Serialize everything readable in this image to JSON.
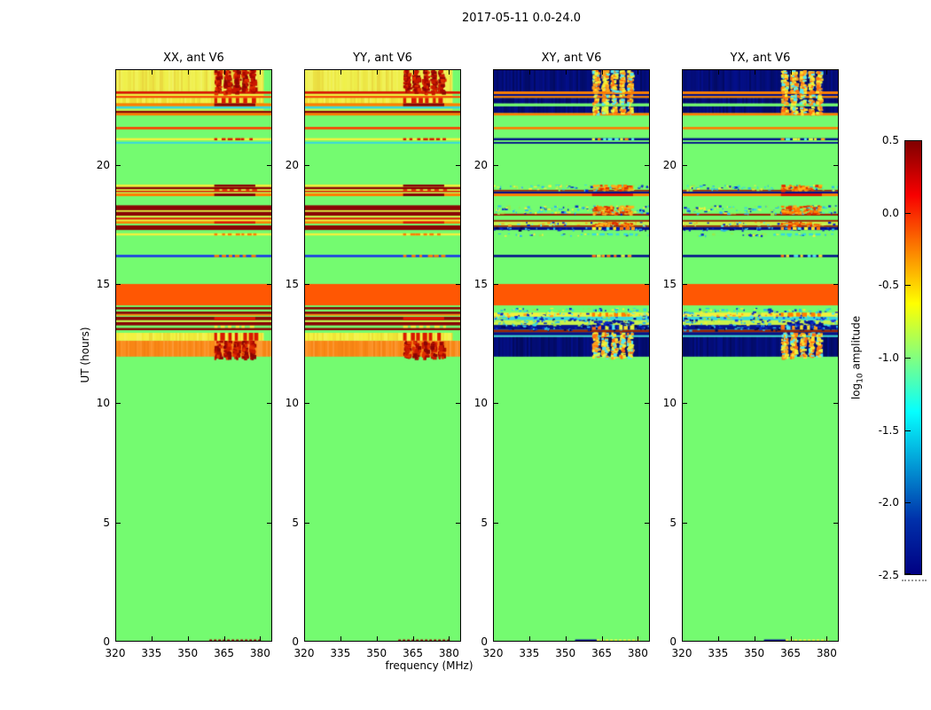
{
  "colorbar": {
    "label_prefix": "log",
    "label_sub": "10",
    "label_suffix": " amplitude",
    "ticks": [
      0.5,
      0.0,
      -0.5,
      -1.0,
      -1.5,
      -2.0,
      -2.5
    ],
    "tick_labels": [
      "0.5",
      "0.0",
      "-0.5",
      "-1.0",
      "-1.5",
      "-2.0",
      "-2.5"
    ],
    "vmin": -2.5,
    "vmax": 0.5,
    "gradient_stops": [
      [
        "#800000",
        0
      ],
      [
        "#F80000",
        12.5
      ],
      [
        "#FFFF00",
        37.5
      ],
      [
        "#05FFFF",
        62.5
      ],
      [
        "#0030AA",
        87.5
      ],
      [
        "#000083",
        100
      ]
    ]
  },
  "palette": {
    "g": "#74FB70",
    "o": "#FF5703",
    "ob": "#FB8A17",
    "y": "#F2F13C",
    "yt": "#EFF04A",
    "yg": "#C9F24C",
    "dr": "#8A0505",
    "r": "#DE1400",
    "ro": "#FF4000",
    "ol": "#FF7D00",
    "c": "#38D8E0",
    "b": "#1838E8",
    "db": "#04108C",
    "br": "#9E2403"
  },
  "chart_data": {
    "type": "heatmap",
    "title": "2017-05-11 0.0-24.0",
    "xlabel": "frequency (MHz)",
    "ylabel": "UT (hours)",
    "x_range_mhz": [
      320,
      385
    ],
    "x_ticks": [
      320,
      335,
      350,
      365,
      380
    ],
    "y_range_hours": [
      0,
      24
    ],
    "y_ticks": [
      0,
      5,
      10,
      15,
      20
    ],
    "colorbar_label": "log10 amplitude",
    "color_scale": {
      "map": "jet",
      "vmin": -2.5,
      "vmax": 0.5
    },
    "rfi_blotch_region_mhz": [
      361,
      378
    ],
    "panels": [
      {
        "title": "XX, ant V6",
        "profile": "auto"
      },
      {
        "title": "YY, ant V6",
        "profile": "auto"
      },
      {
        "title": "XY, ant V6",
        "profile": "cross"
      },
      {
        "title": "YX, ant V6",
        "profile": "cross"
      }
    ],
    "band_format": "[ut_start, ut_end, base_color_key, right_region_overlay, flags] ; right overlays: rb=red blotch cols, bb=bright blotch cols, rf/drf=red/darkred fill, obf/dbb=orange/darkblue blotch, rd/od/yd/cd/bd=dash colors, botA/botB=bottom edge RFI line ; flags: v/sv=vertical streaks, sp*=speckle, e=green right edge",
    "profiles": {
      "auto": [
        [
          0.0,
          0.1,
          "g",
          "botA",
          ""
        ],
        [
          0.1,
          11.95,
          "g",
          "",
          ""
        ],
        [
          11.95,
          12.62,
          "ob",
          "rb",
          "v"
        ],
        [
          12.62,
          12.95,
          "y",
          "rd",
          "v e"
        ],
        [
          12.95,
          13.06,
          "g",
          "",
          ""
        ],
        [
          13.06,
          13.16,
          "dr",
          "",
          ""
        ],
        [
          13.16,
          13.26,
          "g",
          "yd",
          ""
        ],
        [
          13.26,
          13.4,
          "dr",
          "",
          ""
        ],
        [
          13.4,
          13.48,
          "yg",
          "",
          ""
        ],
        [
          13.48,
          13.62,
          "dr",
          "rf",
          ""
        ],
        [
          13.62,
          13.67,
          "g",
          "",
          ""
        ],
        [
          13.67,
          13.74,
          "ol",
          "",
          ""
        ],
        [
          13.74,
          13.84,
          "dr",
          "",
          ""
        ],
        [
          13.84,
          13.93,
          "g",
          "",
          ""
        ],
        [
          13.93,
          14.03,
          "dr",
          "",
          ""
        ],
        [
          14.03,
          14.1,
          "g",
          "",
          ""
        ],
        [
          14.1,
          15.0,
          "o",
          "",
          ""
        ],
        [
          15.0,
          16.12,
          "g",
          "",
          ""
        ],
        [
          16.12,
          16.22,
          "b",
          "od",
          ""
        ],
        [
          16.22,
          17.03,
          "g",
          "",
          ""
        ],
        [
          17.03,
          17.13,
          "y",
          "od",
          ""
        ],
        [
          17.13,
          17.26,
          "g",
          "",
          ""
        ],
        [
          17.26,
          17.46,
          "dr",
          "",
          ""
        ],
        [
          17.46,
          17.53,
          "g",
          "",
          ""
        ],
        [
          17.53,
          17.63,
          "ol",
          "rf",
          ""
        ],
        [
          17.63,
          17.7,
          "y",
          "",
          ""
        ],
        [
          17.7,
          17.78,
          "r",
          "",
          ""
        ],
        [
          17.78,
          17.86,
          "yg",
          "",
          ""
        ],
        [
          17.86,
          18.03,
          "dr",
          "",
          ""
        ],
        [
          18.03,
          18.09,
          "y",
          "",
          ""
        ],
        [
          18.09,
          18.3,
          "dr",
          "",
          ""
        ],
        [
          18.3,
          18.68,
          "g",
          "",
          ""
        ],
        [
          18.68,
          18.79,
          "ol",
          "drf",
          ""
        ],
        [
          18.79,
          18.85,
          "yg",
          "",
          ""
        ],
        [
          18.85,
          18.91,
          "r",
          "",
          ""
        ],
        [
          18.91,
          18.97,
          "y",
          "rd",
          ""
        ],
        [
          18.97,
          19.07,
          "dr",
          "",
          ""
        ],
        [
          19.07,
          19.17,
          "y",
          "drf",
          ""
        ],
        [
          19.17,
          20.88,
          "g",
          "",
          ""
        ],
        [
          20.88,
          20.95,
          "c",
          "",
          ""
        ],
        [
          20.95,
          21.02,
          "g",
          "",
          ""
        ],
        [
          21.02,
          21.12,
          "y",
          "rd",
          ""
        ],
        [
          21.12,
          21.48,
          "g",
          "",
          ""
        ],
        [
          21.48,
          21.58,
          "ro",
          "",
          ""
        ],
        [
          21.58,
          22.06,
          "g",
          "",
          ""
        ],
        [
          22.06,
          22.17,
          "ol",
          "",
          ""
        ],
        [
          22.17,
          22.26,
          "dr",
          "",
          ""
        ],
        [
          22.26,
          22.35,
          "yg",
          "",
          "e"
        ],
        [
          22.35,
          22.45,
          "c",
          "",
          ""
        ],
        [
          22.45,
          22.58,
          "ol",
          "drf",
          ""
        ],
        [
          22.58,
          22.8,
          "y",
          "rd",
          "v e"
        ],
        [
          22.8,
          22.88,
          "ro",
          "",
          ""
        ],
        [
          22.88,
          22.97,
          "y",
          "",
          "e"
        ],
        [
          22.97,
          23.08,
          "r",
          "",
          ""
        ],
        [
          23.08,
          24.0,
          "yt",
          "rb",
          "v e"
        ]
      ],
      "cross": [
        [
          0.0,
          0.1,
          "g",
          "botB",
          ""
        ],
        [
          0.1,
          11.95,
          "g",
          "",
          ""
        ],
        [
          11.95,
          12.78,
          "db",
          "bb",
          "sv"
        ],
        [
          12.78,
          12.85,
          "c",
          "",
          ""
        ],
        [
          12.85,
          12.98,
          "db",
          "bb",
          ""
        ],
        [
          12.98,
          13.08,
          "br",
          "",
          ""
        ],
        [
          13.08,
          13.28,
          "db",
          "bd",
          "spB"
        ],
        [
          13.28,
          13.48,
          "yg",
          "dbb",
          "sp1"
        ],
        [
          13.48,
          13.63,
          "c",
          "",
          "sp3"
        ],
        [
          13.63,
          13.8,
          "y",
          "od",
          "sp2"
        ],
        [
          13.8,
          14.0,
          "g",
          "",
          "sp1"
        ],
        [
          14.0,
          14.1,
          "g",
          "",
          ""
        ],
        [
          14.1,
          15.0,
          "o",
          "",
          ""
        ],
        [
          15.0,
          16.12,
          "g",
          "",
          ""
        ],
        [
          16.12,
          16.22,
          "db",
          "bd",
          ""
        ],
        [
          16.22,
          17.03,
          "g",
          "",
          ""
        ],
        [
          17.03,
          17.13,
          "g",
          "cd",
          "sp1"
        ],
        [
          17.13,
          17.26,
          "g",
          "",
          ""
        ],
        [
          17.26,
          17.39,
          "db",
          "bd",
          "spB"
        ],
        [
          17.39,
          17.46,
          "br",
          "",
          ""
        ],
        [
          17.46,
          17.61,
          "yg",
          "obf",
          "sp2"
        ],
        [
          17.61,
          17.69,
          "br",
          "",
          ""
        ],
        [
          17.69,
          17.86,
          "g",
          "",
          ""
        ],
        [
          17.86,
          17.95,
          "br",
          "",
          ""
        ],
        [
          17.95,
          18.3,
          "g",
          "obf",
          "sp1"
        ],
        [
          18.3,
          18.68,
          "g",
          "",
          ""
        ],
        [
          18.68,
          18.79,
          "ol",
          "rf",
          ""
        ],
        [
          18.79,
          18.88,
          "db",
          "",
          ""
        ],
        [
          18.88,
          18.95,
          "br",
          "",
          ""
        ],
        [
          18.95,
          19.17,
          "g",
          "obf",
          "sp1"
        ],
        [
          19.17,
          20.88,
          "g",
          "",
          ""
        ],
        [
          20.88,
          20.95,
          "db",
          "",
          ""
        ],
        [
          20.95,
          21.02,
          "g",
          "",
          ""
        ],
        [
          21.02,
          21.12,
          "db",
          "bd",
          ""
        ],
        [
          21.12,
          21.48,
          "g",
          "",
          ""
        ],
        [
          21.48,
          21.58,
          "ol",
          "",
          ""
        ],
        [
          21.58,
          22.06,
          "g",
          "",
          ""
        ],
        [
          22.06,
          22.17,
          "ol",
          "",
          ""
        ],
        [
          22.17,
          22.45,
          "db",
          "bb",
          "sv"
        ],
        [
          22.45,
          22.57,
          "g",
          "",
          ""
        ],
        [
          22.57,
          22.8,
          "db",
          "bb",
          "sv"
        ],
        [
          22.8,
          22.88,
          "ol",
          "",
          ""
        ],
        [
          22.88,
          22.96,
          "db",
          "bb",
          ""
        ],
        [
          22.96,
          23.07,
          "ol",
          "",
          ""
        ],
        [
          23.07,
          24.0,
          "db",
          "bb",
          "sv"
        ]
      ]
    }
  }
}
